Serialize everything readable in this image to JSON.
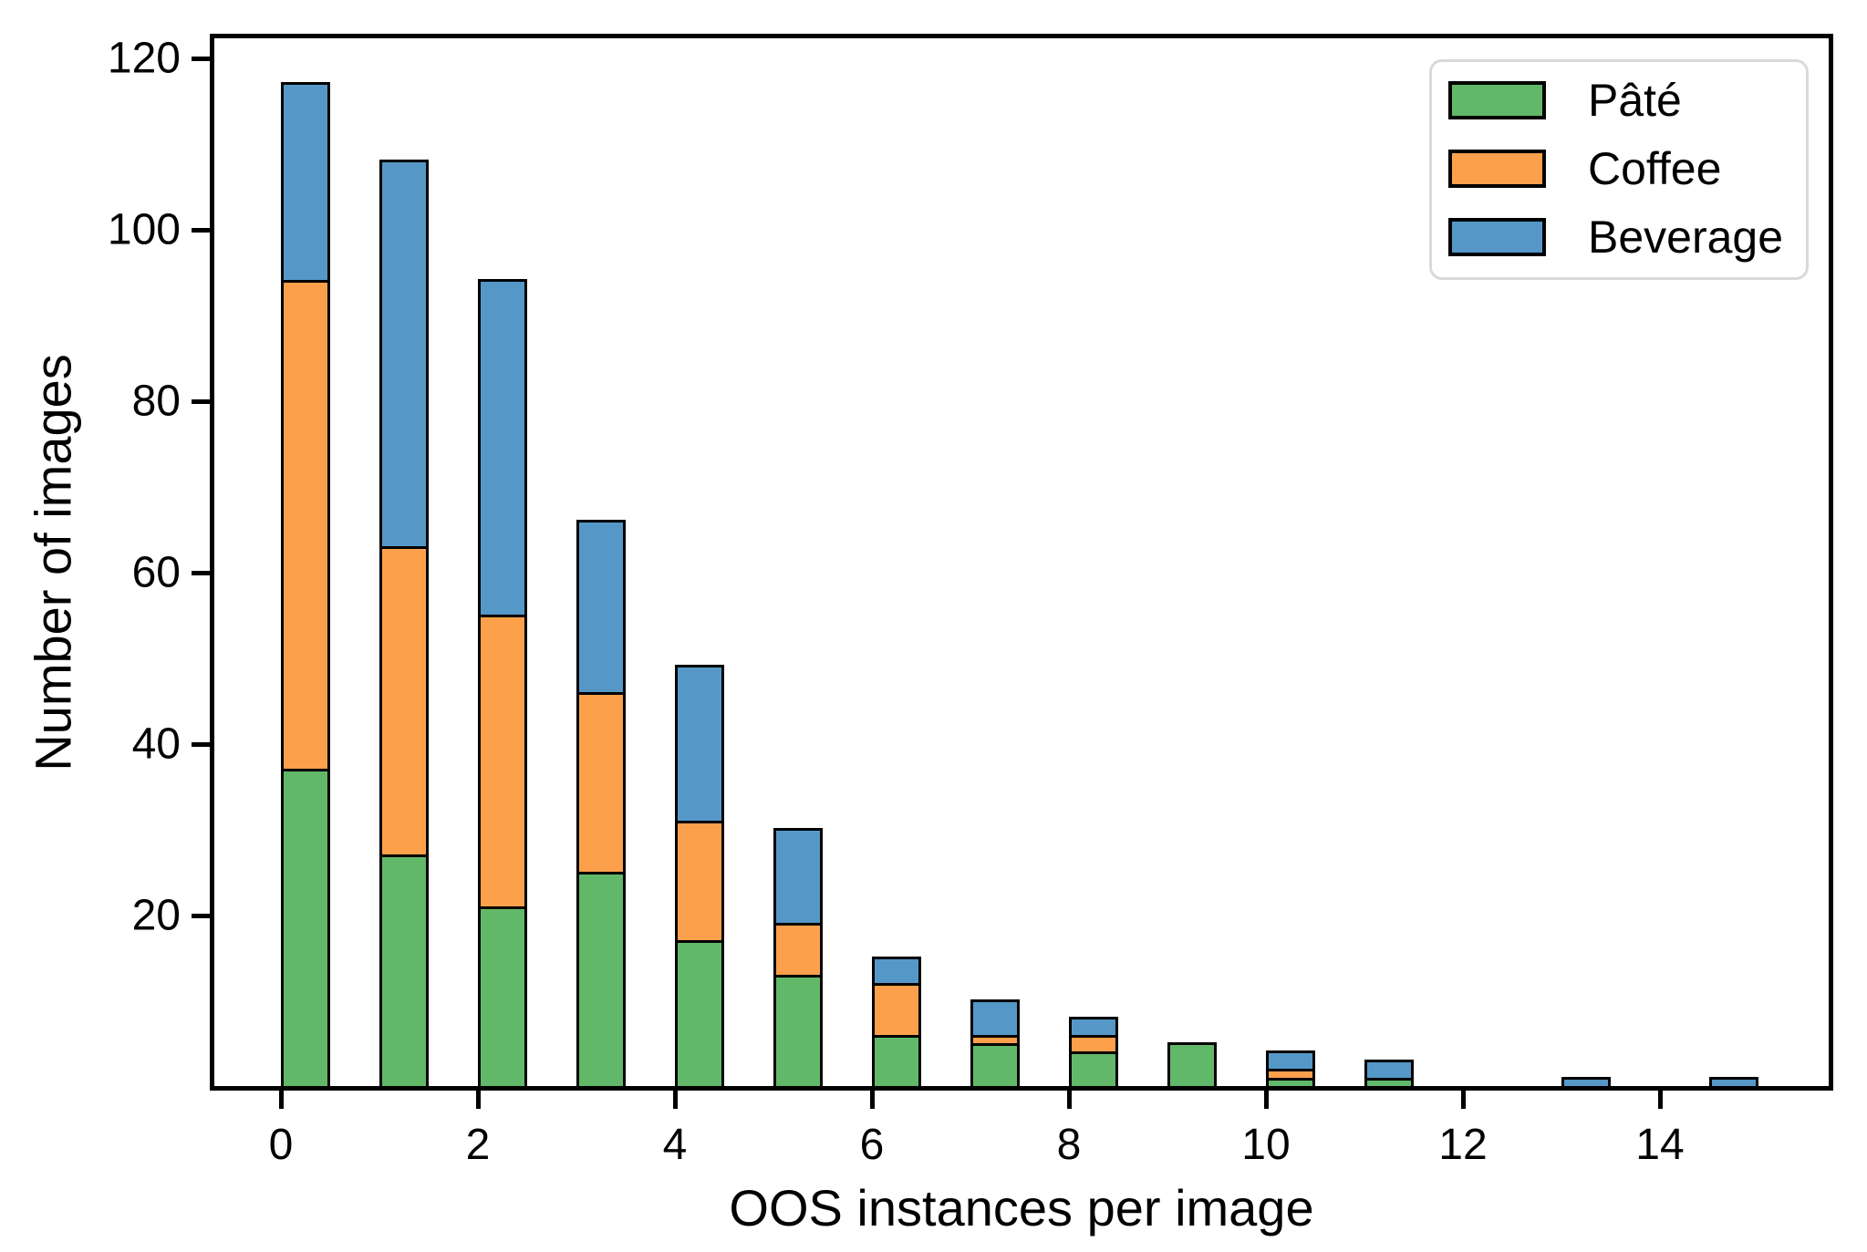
{
  "chart_data": {
    "type": "bar",
    "stacked": true,
    "title": "",
    "xlabel": "OOS instances per image",
    "ylabel": "Number of images",
    "categories": [
      0,
      1,
      2,
      3,
      4,
      5,
      6,
      7,
      8,
      9,
      10,
      11,
      12,
      13,
      14,
      15
    ],
    "bar_left_units": [
      0,
      1,
      2,
      3,
      4,
      5,
      6,
      7,
      8,
      9,
      10,
      11,
      12,
      13,
      14,
      14.5
    ],
    "bar_width_units": 0.5,
    "series": [
      {
        "name": "Pâté",
        "color": "#61b869",
        "values": [
          37,
          27,
          21,
          25,
          17,
          13,
          6,
          5,
          4,
          5,
          1,
          1,
          0,
          0,
          0,
          0
        ]
      },
      {
        "name": "Coffee",
        "color": "#fca04c",
        "values": [
          57,
          36,
          34,
          21,
          14,
          6,
          6,
          1,
          2,
          0,
          1,
          0,
          0,
          0,
          0,
          0
        ]
      },
      {
        "name": "Beverage",
        "color": "#5598c8",
        "values": [
          23,
          45,
          39,
          20,
          18,
          11,
          3,
          4,
          2,
          0,
          2,
          2,
          0,
          1,
          0,
          1
        ]
      }
    ],
    "totals": [
      117,
      108,
      94,
      66,
      49,
      30,
      15,
      10,
      8,
      5,
      4,
      3,
      0,
      1,
      0,
      1
    ],
    "xticks": [
      0,
      2,
      4,
      6,
      8,
      10,
      12,
      14
    ],
    "yticks": [
      20,
      40,
      60,
      80,
      100,
      120
    ],
    "xlim": [
      -0.69,
      15.73
    ],
    "ylim": [
      0,
      122.5
    ],
    "grid": false,
    "bar_edge_color": "#000000",
    "legend_position": "upper right"
  },
  "legend": {
    "items": [
      {
        "label": "Pâté",
        "color": "#61b869"
      },
      {
        "label": "Coffee",
        "color": "#fca04c"
      },
      {
        "label": "Beverage",
        "color": "#5598c8"
      }
    ]
  }
}
